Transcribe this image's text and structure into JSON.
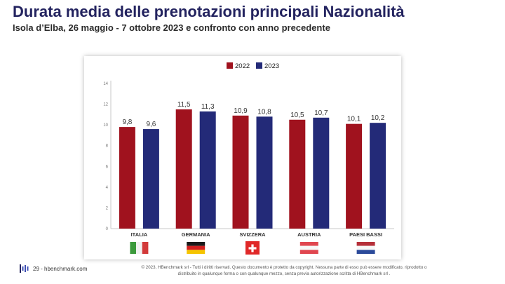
{
  "header": {
    "title": "Durata media delle prenotazioni principali Nazionalità",
    "subtitle": "Isola d’Elba, 26 maggio - 7 ottobre 2023 e confronto con anno precedente"
  },
  "colors": {
    "y2022": "#a0121e",
    "y2023": "#232a78",
    "title": "#23235f"
  },
  "chart_data": {
    "type": "bar",
    "categories": [
      "ITALIA",
      "GERMANIA",
      "SVIZZERA",
      "AUSTRIA",
      "PAESI BASSI"
    ],
    "series": [
      {
        "name": "2022",
        "values": [
          9.8,
          11.5,
          10.9,
          10.5,
          10.1
        ],
        "labels": [
          "9,8",
          "11,5",
          "10,9",
          "10,5",
          "10,1"
        ]
      },
      {
        "name": "2023",
        "values": [
          9.6,
          11.3,
          10.8,
          10.7,
          10.2
        ],
        "labels": [
          "9,6",
          "11,3",
          "10,8",
          "10,7",
          "10,2"
        ]
      }
    ],
    "ylim": [
      0,
      14
    ],
    "yticks": [
      0,
      2,
      4,
      6,
      8,
      10,
      12,
      14
    ],
    "legend_position": "top-center",
    "grid": false,
    "flags": [
      "italy-flag",
      "germany-flag",
      "switzerland-flag",
      "austria-flag",
      "netherlands-flag"
    ]
  },
  "footer": {
    "page": "29 - hbenchmark.com",
    "copyright_line1": "© 2023, HBenchmark srl - Tutti i diritti riservati. Questo documento è protetto da copyright. Nessuna parte di esso può essere modificato, riprodotto o",
    "copyright_line2": "distribuito in qualunque forma o con qualunque mezzo, senza previa autorizzazione scritta di HBenchmark srl ."
  }
}
